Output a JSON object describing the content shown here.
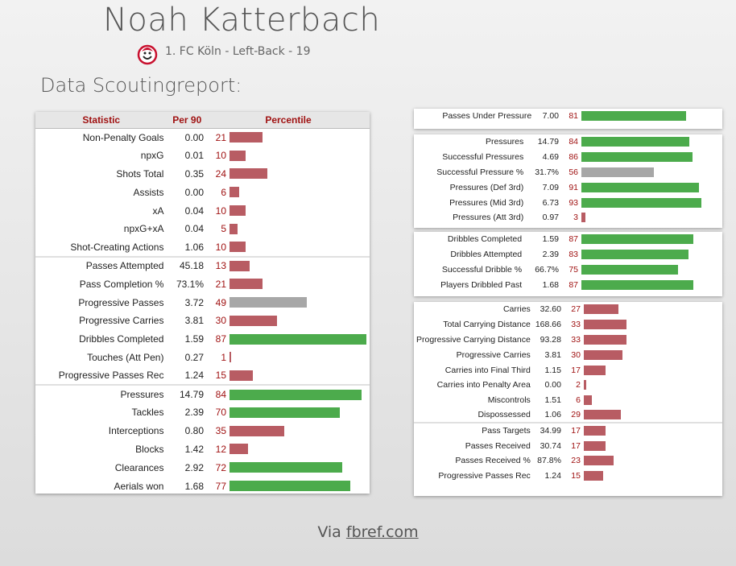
{
  "header": {
    "player_name": "Noah Katterbach",
    "subtitle": "1. FC Köln - Left-Back - 19",
    "section_title": "Data Scoutingreport:"
  },
  "colors": {
    "good": "#4cab4c",
    "mid": "#a7a7a7",
    "bad": "#b85c63",
    "percentile_text": "#a01212"
  },
  "left_table": {
    "headers": {
      "statistic": "Statistic",
      "per90": "Per 90",
      "percentile": "Percentile"
    },
    "groups": [
      [
        {
          "stat": "Non-Penalty Goals",
          "value": "0.00",
          "pct": 21
        },
        {
          "stat": "npxG",
          "value": "0.01",
          "pct": 10
        },
        {
          "stat": "Shots Total",
          "value": "0.35",
          "pct": 24
        },
        {
          "stat": "Assists",
          "value": "0.00",
          "pct": 6
        },
        {
          "stat": "xA",
          "value": "0.04",
          "pct": 10
        },
        {
          "stat": "npxG+xA",
          "value": "0.04",
          "pct": 5
        },
        {
          "stat": "Shot-Creating Actions",
          "value": "1.06",
          "pct": 10
        }
      ],
      [
        {
          "stat": "Passes Attempted",
          "value": "45.18",
          "pct": 13
        },
        {
          "stat": "Pass Completion %",
          "value": "73.1%",
          "pct": 21
        },
        {
          "stat": "Progressive Passes",
          "value": "3.72",
          "pct": 49
        },
        {
          "stat": "Progressive Carries",
          "value": "3.81",
          "pct": 30
        },
        {
          "stat": "Dribbles Completed",
          "value": "1.59",
          "pct": 87
        },
        {
          "stat": "Touches (Att Pen)",
          "value": "0.27",
          "pct": 1
        },
        {
          "stat": "Progressive Passes Rec",
          "value": "1.24",
          "pct": 15
        }
      ],
      [
        {
          "stat": "Pressures",
          "value": "14.79",
          "pct": 84
        },
        {
          "stat": "Tackles",
          "value": "2.39",
          "pct": 70
        },
        {
          "stat": "Interceptions",
          "value": "0.80",
          "pct": 35
        },
        {
          "stat": "Blocks",
          "value": "1.42",
          "pct": 12
        },
        {
          "stat": "Clearances",
          "value": "2.92",
          "pct": 72
        },
        {
          "stat": "Aerials won",
          "value": "1.68",
          "pct": 77
        }
      ]
    ]
  },
  "right_panels": [
    [
      {
        "stat": "Passes Under Pressure",
        "value": "7.00",
        "pct": 81
      }
    ],
    [
      {
        "stat": "Pressures",
        "value": "14.79",
        "pct": 84
      },
      {
        "stat": "Successful Pressures",
        "value": "4.69",
        "pct": 86
      },
      {
        "stat": "Successful Pressure %",
        "value": "31.7%",
        "pct": 56
      },
      {
        "stat": "Pressures (Def 3rd)",
        "value": "7.09",
        "pct": 91
      },
      {
        "stat": "Pressures (Mid 3rd)",
        "value": "6.73",
        "pct": 93
      },
      {
        "stat": "Pressures (Att 3rd)",
        "value": "0.97",
        "pct": 3
      }
    ],
    [
      {
        "stat": "Dribbles Completed",
        "value": "1.59",
        "pct": 87
      },
      {
        "stat": "Dribbles Attempted",
        "value": "2.39",
        "pct": 83
      },
      {
        "stat": "Successful Dribble %",
        "value": "66.7%",
        "pct": 75
      },
      {
        "stat": "Players Dribbled Past",
        "value": "1.68",
        "pct": 87
      }
    ],
    [
      {
        "stat": "Carries",
        "value": "32.60",
        "pct": 27
      },
      {
        "stat": "Total Carrying Distance",
        "value": "168.66",
        "pct": 33
      },
      {
        "stat": "Progressive Carrying Distance",
        "value": "93.28",
        "pct": 33
      },
      {
        "stat": "Progressive Carries",
        "value": "3.81",
        "pct": 30
      },
      {
        "stat": "Carries into Final Third",
        "value": "1.15",
        "pct": 17
      },
      {
        "stat": "Carries into Penalty Area",
        "value": "0.00",
        "pct": 2
      },
      {
        "stat": "Miscontrols",
        "value": "1.51",
        "pct": 6
      },
      {
        "stat": "Dispossessed",
        "value": "1.06",
        "pct": 29
      },
      {
        "stat": "Pass Targets",
        "value": "34.99",
        "pct": 17,
        "sep": true
      },
      {
        "stat": "Passes Received",
        "value": "30.74",
        "pct": 17
      },
      {
        "stat": "Passes Received %",
        "value": "87.8%",
        "pct": 23
      },
      {
        "stat": "Progressive Passes Rec",
        "value": "1.24",
        "pct": 15
      }
    ]
  ],
  "footer": {
    "prefix": "Via",
    "link": "fbref.com"
  }
}
